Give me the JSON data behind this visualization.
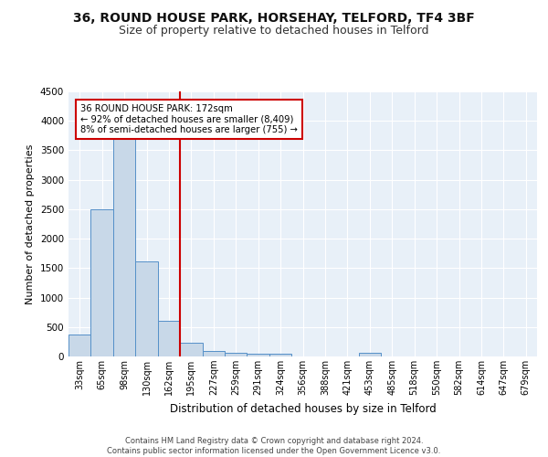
{
  "title1": "36, ROUND HOUSE PARK, HORSEHAY, TELFORD, TF4 3BF",
  "title2": "Size of property relative to detached houses in Telford",
  "xlabel": "Distribution of detached houses by size in Telford",
  "ylabel": "Number of detached properties",
  "bar_labels": [
    "33sqm",
    "65sqm",
    "98sqm",
    "130sqm",
    "162sqm",
    "195sqm",
    "227sqm",
    "259sqm",
    "291sqm",
    "324sqm",
    "356sqm",
    "388sqm",
    "421sqm",
    "453sqm",
    "485sqm",
    "518sqm",
    "550sqm",
    "582sqm",
    "614sqm",
    "647sqm",
    "679sqm"
  ],
  "bar_values": [
    370,
    2500,
    3750,
    1620,
    600,
    240,
    100,
    60,
    50,
    50,
    0,
    0,
    0,
    60,
    0,
    0,
    0,
    0,
    0,
    0,
    0
  ],
  "bar_color": "#c8d8e8",
  "bar_edge_color": "#5590c8",
  "vline_index": 4,
  "vline_color": "#cc0000",
  "annotation_text": "36 ROUND HOUSE PARK: 172sqm\n← 92% of detached houses are smaller (8,409)\n8% of semi-detached houses are larger (755) →",
  "annotation_box_color": "#ffffff",
  "annotation_box_edge": "#cc0000",
  "ylim": [
    0,
    4500
  ],
  "yticks": [
    0,
    500,
    1000,
    1500,
    2000,
    2500,
    3000,
    3500,
    4000,
    4500
  ],
  "bg_color": "#e8f0f8",
  "footer": "Contains HM Land Registry data © Crown copyright and database right 2024.\nContains public sector information licensed under the Open Government Licence v3.0.",
  "title1_fontsize": 10,
  "title2_fontsize": 9,
  "ylabel_fontsize": 8,
  "xlabel_fontsize": 8.5
}
